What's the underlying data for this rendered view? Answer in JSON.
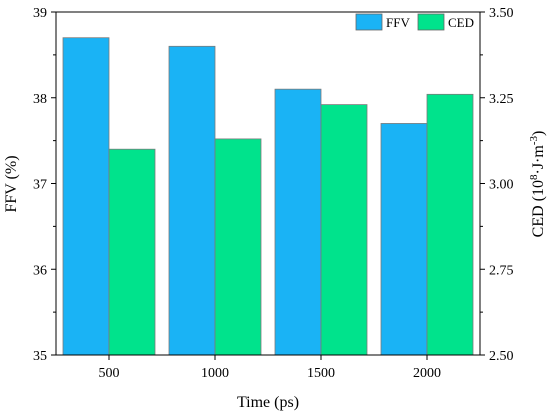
{
  "chart_data": {
    "type": "bar",
    "title": "",
    "xlabel": "Time (ps)",
    "categories": [
      "500",
      "1000",
      "1500",
      "2000"
    ],
    "series": [
      {
        "name": "FFV",
        "axis": "left",
        "color": "#1ab3f5",
        "values": [
          38.7,
          38.6,
          38.1,
          37.7
        ]
      },
      {
        "name": "CED",
        "axis": "right",
        "color": "#00e38c",
        "values": [
          3.1,
          3.13,
          3.23,
          3.26
        ]
      }
    ],
    "y_left": {
      "label": "FFV (%)",
      "min": 35,
      "max": 39,
      "ticks": [
        35,
        36,
        37,
        38,
        39
      ],
      "tick_labels": [
        "35",
        "36",
        "37",
        "38",
        "39"
      ]
    },
    "y_right": {
      "label_main": "CED (10",
      "label_sup1": "8",
      "label_mid": "·J·m",
      "label_sup2": "-3",
      "label_end": ")",
      "min": 2.5,
      "max": 3.5,
      "ticks": [
        2.5,
        2.75,
        3.0,
        3.25,
        3.5
      ],
      "tick_labels": [
        "2.50",
        "2.75",
        "3.00",
        "3.25",
        "3.50"
      ]
    },
    "legend": {
      "position": "top-right"
    },
    "grid": false
  }
}
